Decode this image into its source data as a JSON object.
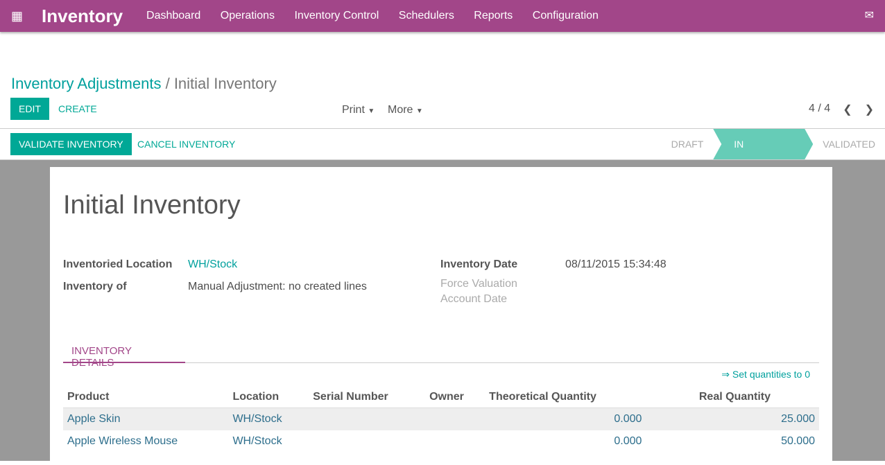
{
  "app": {
    "title": "Inventory",
    "menu": [
      "Dashboard",
      "Operations",
      "Inventory Control",
      "Schedulers",
      "Reports",
      "Configuration"
    ]
  },
  "breadcrumb": {
    "parent": "Inventory Adjustments",
    "current": "Initial Inventory"
  },
  "toolbar": {
    "edit": "EDIT",
    "create": "CREATE",
    "print": "Print",
    "more": "More",
    "pager": "4 / 4"
  },
  "actions": {
    "validate": "VALIDATE INVENTORY",
    "cancel": "CANCEL INVENTORY"
  },
  "status": {
    "steps": [
      "DRAFT",
      "IN PROGRESS",
      "VALIDATED"
    ],
    "active": "IN PROGRESS"
  },
  "form": {
    "title": "Initial Inventory",
    "location_label": "Inventoried Location",
    "location": "WH/Stock",
    "of_label": "Inventory of",
    "of": "Manual Adjustment: no created lines",
    "date_label": "Inventory Date",
    "date": "08/11/2015 15:34:48",
    "force_label": "Force Valuation Account Date"
  },
  "tab": "INVENTORY DETAILS",
  "set_zero": "⇒ Set quantities to 0",
  "table": {
    "headers": [
      "Product",
      "Location",
      "Serial Number",
      "Owner",
      "Theoretical Quantity",
      "Real Quantity"
    ],
    "rows": [
      [
        "Apple Skin",
        "WH/Stock",
        "",
        "",
        "0.000",
        "25.000"
      ],
      [
        "Apple Wireless Mouse",
        "WH/Stock",
        "",
        "",
        "0.000",
        "50.000"
      ]
    ]
  },
  "colors": {
    "brand": "#a24689",
    "accent": "#00a896"
  }
}
